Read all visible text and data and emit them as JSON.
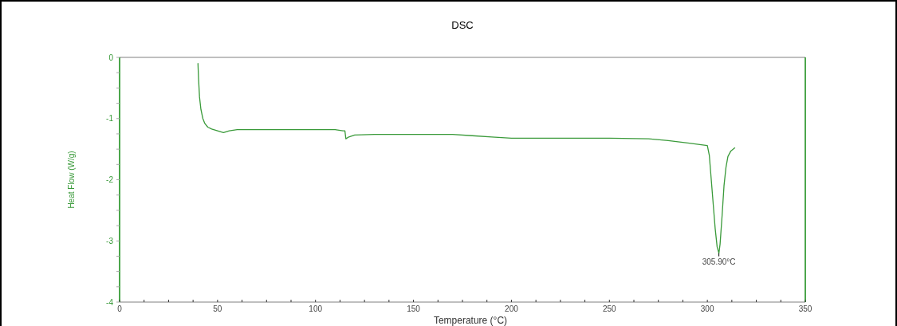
{
  "chart_data": {
    "type": "line",
    "title": "DSC",
    "xlabel": "Temperature (°C)",
    "ylabel": "Heat Flow (W/g)",
    "xlim": [
      0,
      350
    ],
    "ylim": [
      -4,
      0
    ],
    "xticks": [
      0,
      {
        "value": 12.5,
        "label": null
      },
      {
        "value": 25,
        "label": null
      },
      {
        "value": 37.5,
        "label": null
      },
      50,
      {
        "value": 62.5,
        "label": null
      },
      {
        "value": 75,
        "label": null
      },
      {
        "value": 87.5,
        "label": null
      },
      100,
      {
        "value": 112.5,
        "label": null
      },
      {
        "value": 125,
        "label": null
      },
      {
        "value": 137.5,
        "label": null
      },
      150,
      {
        "value": 162.5,
        "label": null
      },
      {
        "value": 175,
        "label": null
      },
      {
        "value": 187.5,
        "label": null
      },
      200,
      {
        "value": 212.5,
        "label": null
      },
      {
        "value": 225,
        "label": null
      },
      {
        "value": 237.5,
        "label": null
      },
      250,
      {
        "value": 262.5,
        "label": null
      },
      {
        "value": 275,
        "label": null
      },
      {
        "value": 287.5,
        "label": null
      },
      300,
      {
        "value": 312.5,
        "label": null
      },
      {
        "value": 325,
        "label": null
      },
      {
        "value": 337.5,
        "label": null
      },
      350
    ],
    "yticks": [
      0,
      {
        "value": -0.25,
        "label": null
      },
      {
        "value": -0.5,
        "label": null
      },
      {
        "value": -0.75,
        "label": null
      },
      -1,
      {
        "value": -1.25,
        "label": null
      },
      {
        "value": -1.5,
        "label": null
      },
      {
        "value": -1.75,
        "label": null
      },
      -2,
      {
        "value": -2.25,
        "label": null
      },
      {
        "value": -2.5,
        "label": null
      },
      {
        "value": -2.75,
        "label": null
      },
      -3,
      {
        "value": -3.25,
        "label": null
      },
      {
        "value": -3.5,
        "label": null
      },
      {
        "value": -3.75,
        "label": null
      },
      -4
    ],
    "grid": false,
    "marker": "none",
    "line_style": "solid",
    "series": [
      {
        "color": "#3a9a3a",
        "x": [
          40,
          40.3,
          40.8,
          41.5,
          42.5,
          43.5,
          45,
          47,
          50,
          53,
          56,
          60,
          70,
          80,
          90,
          100,
          110,
          114,
          115,
          115.5,
          117,
          120,
          130,
          150,
          170,
          180,
          190,
          200,
          220,
          250,
          270,
          280,
          290,
          300,
          301,
          302,
          303,
          304,
          305,
          305.9,
          306.5,
          307.5,
          308.5,
          309.5,
          310.5,
          312,
          314
        ],
        "values": [
          -0.1,
          -0.35,
          -0.65,
          -0.85,
          -1.0,
          -1.08,
          -1.14,
          -1.17,
          -1.2,
          -1.23,
          -1.2,
          -1.18,
          -1.18,
          -1.18,
          -1.18,
          -1.18,
          -1.18,
          -1.2,
          -1.2,
          -1.33,
          -1.3,
          -1.27,
          -1.26,
          -1.26,
          -1.26,
          -1.28,
          -1.3,
          -1.32,
          -1.32,
          -1.32,
          -1.33,
          -1.36,
          -1.4,
          -1.44,
          -1.6,
          -2.0,
          -2.4,
          -2.8,
          -3.1,
          -3.2,
          -3.05,
          -2.6,
          -2.1,
          -1.8,
          -1.62,
          -1.53,
          -1.48
        ]
      }
    ],
    "annotations": [
      {
        "text": "305.90°C",
        "x": 305.9,
        "y": -3.2
      }
    ]
  }
}
